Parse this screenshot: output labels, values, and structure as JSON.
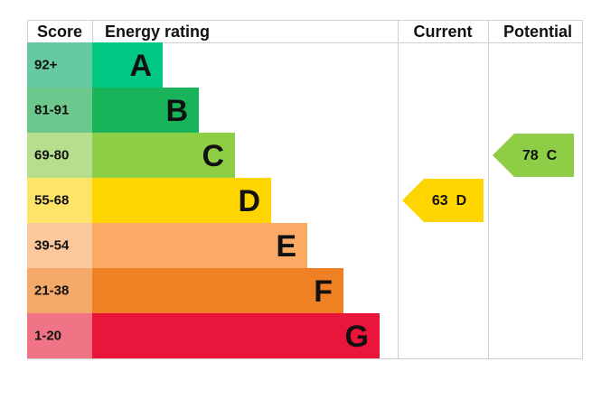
{
  "header": {
    "score": "Score",
    "rating": "Energy rating",
    "current": "Current",
    "potential": "Potential"
  },
  "bands": [
    {
      "score": "92+",
      "letter": "A",
      "color": "#00c781",
      "score_color": "#66c9a3"
    },
    {
      "score": "81-91",
      "letter": "B",
      "color": "#19b459",
      "score_color": "#6cc88d"
    },
    {
      "score": "69-80",
      "letter": "C",
      "color": "#8dce46",
      "score_color": "#b7de8d"
    },
    {
      "score": "55-68",
      "letter": "D",
      "color": "#ffd500",
      "score_color": "#ffe46a"
    },
    {
      "score": "39-54",
      "letter": "E",
      "color": "#fcaa65",
      "score_color": "#fdc79c"
    },
    {
      "score": "21-38",
      "letter": "F",
      "color": "#ef8023",
      "score_color": "#f4a869"
    },
    {
      "score": "1-20",
      "letter": "G",
      "color": "#e9153b",
      "score_color": "#f07486"
    }
  ],
  "current": {
    "value": 63,
    "letter": "D"
  },
  "potential": {
    "value": 78,
    "letter": "C"
  }
}
